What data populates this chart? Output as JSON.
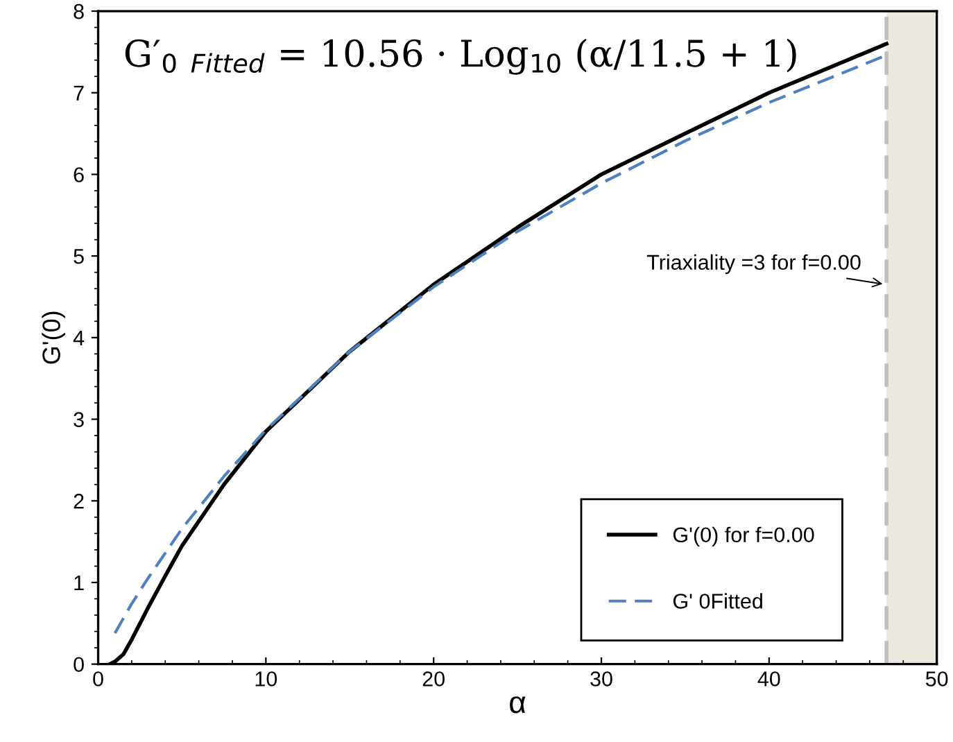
{
  "chart_data": {
    "type": "line",
    "xlabel": "α",
    "ylabel": "G'(0)",
    "xlim": [
      0,
      50
    ],
    "xticks": [
      0,
      10,
      20,
      30,
      40,
      50
    ],
    "ylim": [
      0,
      8
    ],
    "yticks": [
      0,
      1,
      2,
      3,
      4,
      5,
      6,
      7,
      8
    ],
    "grid": false,
    "legend": "bottom right",
    "marker": "none",
    "series": [
      {
        "name": "G'(0) for f=0.00",
        "color": "#000000",
        "line_style": "solid",
        "x": [
          0.7,
          1,
          1.5,
          2,
          3,
          4,
          5,
          7.5,
          10,
          15,
          20,
          25,
          30,
          35,
          40,
          47
        ],
        "values": [
          0,
          0.03,
          0.12,
          0.3,
          0.7,
          1.08,
          1.45,
          2.2,
          2.85,
          3.83,
          4.65,
          5.35,
          6.0,
          6.5,
          7.0,
          7.6
        ]
      },
      {
        "name": "G' 0Fitted",
        "color": "#4f81bd",
        "line_style": "dashed",
        "x": [
          1,
          2,
          3,
          5,
          7.5,
          10,
          15,
          20,
          25,
          30,
          35,
          40,
          47
        ],
        "values": [
          0.38,
          0.74,
          1.06,
          1.66,
          2.3,
          2.87,
          3.83,
          4.62,
          5.3,
          5.89,
          6.41,
          6.88,
          7.46
        ]
      }
    ],
    "ref_lines": [
      {
        "axis": "x",
        "value": 47,
        "color": "#bfbfbf",
        "line_style": "dashed"
      }
    ],
    "bands": [
      {
        "axis": "x",
        "from": 47,
        "to": 50,
        "color": "#ebe8df"
      }
    ],
    "annotations": [
      "G′$_{0}$ $_{Fitted}$ = 10.56 · Log$_{10}$ (α/11.5 + 1)",
      {
        "text": "Triaxiality =3 for f=0.00",
        "x": 47,
        "y": 4.65
      }
    ]
  }
}
